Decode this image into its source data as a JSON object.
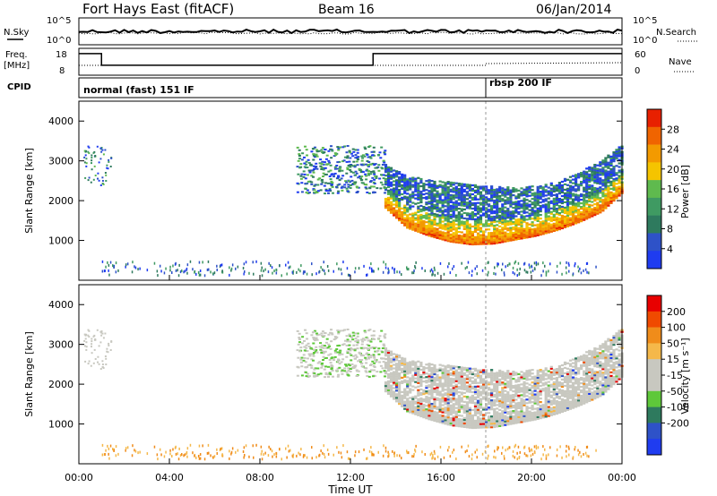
{
  "header": {
    "station": "Fort Hays East (fitACF)",
    "beam": "Beam 16",
    "date": "06/Jan/2014"
  },
  "strips": {
    "nsky_label": "N.Sky",
    "nsearch_label": "N.Search",
    "freq_label_line1": "Freq.",
    "freq_label_line2": "[MHz]",
    "nave_label": "Nave",
    "cpid_label": "CPID",
    "noise_ticks": [
      "10^5",
      "10^0"
    ],
    "freq_ticks": [
      "18",
      "8"
    ],
    "nave_ticks": [
      "60",
      "0"
    ],
    "cpid_segments": [
      {
        "label": "normal (fast) 151 IF",
        "start_hour": 0
      },
      {
        "label": "rbsp 200 IF",
        "start_hour": 18
      }
    ]
  },
  "colors": {
    "power": [
      "#1f3cf0",
      "#2e52c8",
      "#2e7a5e",
      "#3f9a62",
      "#5fba4e",
      "#f5c400",
      "#f39a00",
      "#f06400",
      "#e82000"
    ],
    "velocity": [
      "#e80000",
      "#f04a00",
      "#f08c1a",
      "#f5b84a",
      "#c8c8c0",
      "#c8c8c0",
      "#5ec83a",
      "#2e7a5e",
      "#2e52c8",
      "#1f3cf0"
    ]
  },
  "chart_data": [
    {
      "type": "heatmap",
      "name": "power-panel",
      "ylabel": "Slant Range [km]",
      "xlim": [
        0,
        24
      ],
      "ylim": [
        0,
        4500
      ],
      "yticks": [
        1000,
        2000,
        3000,
        4000
      ],
      "colorbar": {
        "label": "Power [dB]",
        "ticks": [
          4,
          8,
          12,
          16,
          20,
          24,
          28
        ],
        "range": [
          0,
          32
        ]
      },
      "echo_band": {
        "start_hour": 13.5,
        "end_hour": 24,
        "lower_edge_km": [
          1800,
          1300,
          1100,
          950,
          880,
          900,
          1000,
          1100,
          1250,
          1450,
          1700,
          2200
        ],
        "upper_edge_km": [
          2900,
          2600,
          2500,
          2450,
          2400,
          2350,
          2300,
          2350,
          2500,
          2700,
          3000,
          3400
        ]
      }
    },
    {
      "type": "heatmap",
      "name": "velocity-panel",
      "ylabel": "Slant Range [km]",
      "xlabel": "Time UT",
      "xlim": [
        0,
        24
      ],
      "ylim": [
        0,
        4500
      ],
      "yticks": [
        1000,
        2000,
        3000,
        4000
      ],
      "xticks": [
        "00:00",
        "04:00",
        "08:00",
        "12:00",
        "16:00",
        "20:00",
        "00:00"
      ],
      "colorbar": {
        "label": "Velocity [m s⁻¹]",
        "ticks": [
          200,
          100,
          50,
          15,
          -15,
          -50,
          -100,
          -200
        ]
      }
    }
  ]
}
